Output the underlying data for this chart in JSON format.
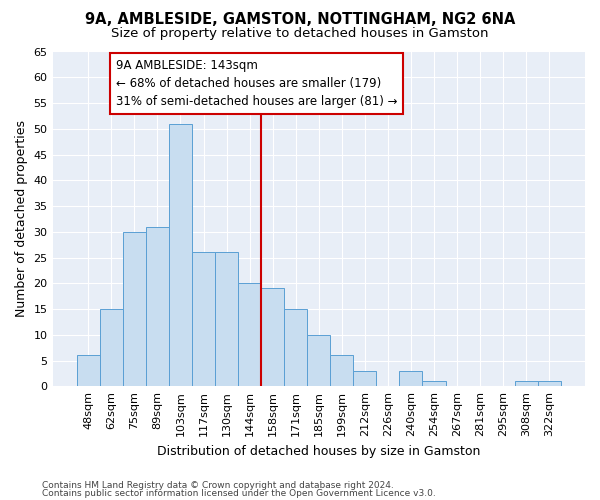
{
  "title1": "9A, AMBLESIDE, GAMSTON, NOTTINGHAM, NG2 6NA",
  "title2": "Size of property relative to detached houses in Gamston",
  "xlabel": "Distribution of detached houses by size in Gamston",
  "ylabel": "Number of detached properties",
  "categories": [
    "48sqm",
    "62sqm",
    "75sqm",
    "89sqm",
    "103sqm",
    "117sqm",
    "130sqm",
    "144sqm",
    "158sqm",
    "171sqm",
    "185sqm",
    "199sqm",
    "212sqm",
    "226sqm",
    "240sqm",
    "254sqm",
    "267sqm",
    "281sqm",
    "295sqm",
    "308sqm",
    "322sqm"
  ],
  "values": [
    6,
    15,
    30,
    31,
    51,
    26,
    26,
    20,
    19,
    15,
    10,
    6,
    3,
    0,
    3,
    1,
    0,
    0,
    0,
    1,
    1
  ],
  "bar_color": "#c8ddf0",
  "bar_edge_color": "#5a9fd4",
  "vline_color": "#cc0000",
  "annotation_text": "9A AMBLESIDE: 143sqm\n← 68% of detached houses are smaller (179)\n31% of semi-detached houses are larger (81) →",
  "annotation_box_color": "#ffffff",
  "annotation_box_edge": "#cc0000",
  "ylim": [
    0,
    65
  ],
  "yticks": [
    0,
    5,
    10,
    15,
    20,
    25,
    30,
    35,
    40,
    45,
    50,
    55,
    60,
    65
  ],
  "footer1": "Contains HM Land Registry data © Crown copyright and database right 2024.",
  "footer2": "Contains public sector information licensed under the Open Government Licence v3.0.",
  "bg_color": "#e8eef7",
  "grid_color": "#ffffff",
  "fig_bg_color": "#ffffff",
  "title1_fontsize": 10.5,
  "title2_fontsize": 9.5,
  "tick_fontsize": 8,
  "ylabel_fontsize": 9,
  "xlabel_fontsize": 9,
  "footer_fontsize": 6.5,
  "annotation_fontsize": 8.5
}
